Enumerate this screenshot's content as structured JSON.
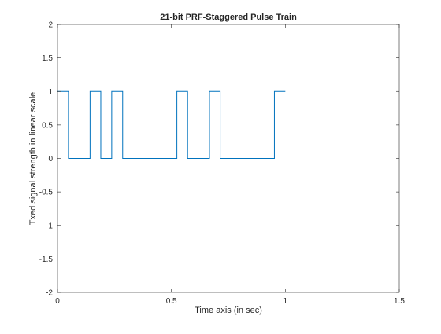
{
  "chart_data": {
    "type": "line",
    "title": "21-bit PRF-Staggered Pulse Train",
    "xlabel": "Time axis (in sec)",
    "ylabel": "Txed signal strength in linear scale",
    "xlim": [
      0,
      1.5
    ],
    "ylim": [
      -2,
      2
    ],
    "xticks": [
      0,
      0.5,
      1,
      1.5
    ],
    "xtick_labels": [
      "0",
      "0.5",
      "1",
      "1.5"
    ],
    "yticks": [
      -2,
      -1.5,
      -1,
      -0.5,
      0,
      0.5,
      1,
      1.5,
      2
    ],
    "ytick_labels": [
      "-2",
      "-1.5",
      "-1",
      "-0.5",
      "0",
      "0.5",
      "1",
      "1.5",
      "2"
    ],
    "grid": false,
    "line_color": "#0072bd",
    "series": [
      {
        "x": [
          0,
          0.048,
          0.048,
          0.143,
          0.143,
          0.19,
          0.19,
          0.238,
          0.238,
          0.286,
          0.286,
          0.524,
          0.524,
          0.571,
          0.571,
          0.667,
          0.667,
          0.714,
          0.714,
          0.952,
          0.952,
          1.0
        ],
        "y": [
          1,
          1,
          0,
          0,
          1,
          1,
          0,
          0,
          1,
          1,
          0,
          0,
          1,
          1,
          0,
          0,
          1,
          1,
          0,
          0,
          1,
          1
        ]
      }
    ]
  }
}
